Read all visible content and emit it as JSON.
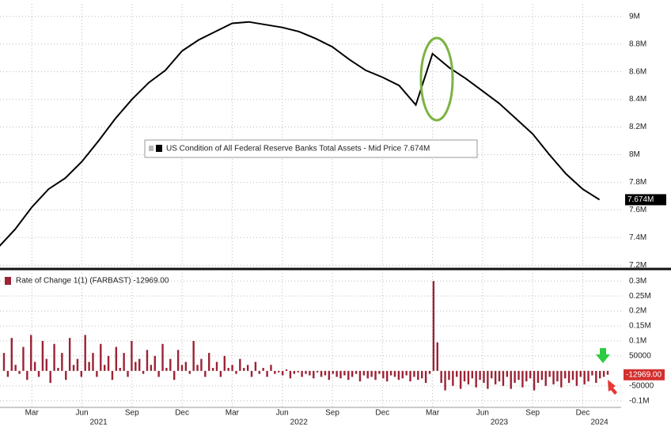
{
  "chart_data": [
    {
      "type": "line",
      "x": [
        "2021-01",
        "2021-02",
        "2021-03",
        "2021-04",
        "2021-05",
        "2021-06",
        "2021-07",
        "2021-08",
        "2021-09",
        "2021-10",
        "2021-11",
        "2021-12",
        "2022-01",
        "2022-02",
        "2022-03",
        "2022-04",
        "2022-05",
        "2022-06",
        "2022-07",
        "2022-08",
        "2022-09",
        "2022-10",
        "2022-11",
        "2022-12",
        "2023-01",
        "2023-02",
        "2023-03",
        "2023-04",
        "2023-05",
        "2023-06",
        "2023-07",
        "2023-08",
        "2023-09",
        "2023-10",
        "2023-11",
        "2023-12",
        "2024-01"
      ],
      "series": [
        {
          "name": "US Condition of All Federal Reserve Banks Total Assets - Mid Price 7.674M",
          "color": "#000000",
          "values": [
            7330000,
            7460000,
            7620000,
            7750000,
            7830000,
            7950000,
            8100000,
            8260000,
            8400000,
            8520000,
            8610000,
            8750000,
            8830000,
            8890000,
            8950000,
            8960000,
            8940000,
            8920000,
            8890000,
            8840000,
            8780000,
            8690000,
            8610000,
            8560000,
            8500000,
            8360000,
            8730000,
            8630000,
            8550000,
            8460000,
            8370000,
            8260000,
            8150000,
            8000000,
            7860000,
            7750000,
            7674000
          ],
          "value_labels": [
            null,
            null,
            null,
            null,
            null,
            null,
            null,
            null,
            null,
            null,
            null,
            null,
            null,
            null,
            null,
            null,
            null,
            null,
            null,
            null,
            null,
            null,
            null,
            null,
            null,
            null,
            null,
            null,
            null,
            null,
            null,
            null,
            null,
            null,
            null,
            null,
            "7.674M"
          ]
        }
      ],
      "ylim": [
        7190000,
        9090000
      ],
      "yticks": [
        {
          "value": 9000000,
          "label": "9M"
        },
        {
          "value": 8800000,
          "label": "8.8M"
        },
        {
          "value": 8600000,
          "label": "8.6M"
        },
        {
          "value": 8400000,
          "label": "8.4M"
        },
        {
          "value": 8200000,
          "label": "8.2M"
        },
        {
          "value": 8000000,
          "label": "8M"
        },
        {
          "value": 7800000,
          "label": "7.8M"
        },
        {
          "value": 7600000,
          "label": "7.6M"
        },
        {
          "value": 7400000,
          "label": "7.4M"
        },
        {
          "value": 7200000,
          "label": "7.2M"
        }
      ],
      "grid": true
    },
    {
      "type": "bar",
      "series": [
        {
          "name": "Rate of Change 1(1) (FARBAST) -12969.00",
          "color": "#9b2335",
          "values": [
            60000,
            -20000,
            110000,
            20000,
            -10000,
            80000,
            -30000,
            120000,
            30000,
            -20000,
            100000,
            40000,
            -40000,
            90000,
            10000,
            60000,
            -30000,
            110000,
            20000,
            40000,
            -20000,
            120000,
            30000,
            60000,
            -20000,
            90000,
            20000,
            50000,
            -30000,
            80000,
            10000,
            60000,
            -20000,
            100000,
            30000,
            40000,
            -10000,
            70000,
            20000,
            50000,
            -20000,
            90000,
            10000,
            40000,
            -30000,
            70000,
            20000,
            30000,
            -10000,
            100000,
            20000,
            40000,
            -20000,
            60000,
            10000,
            30000,
            -20000,
            50000,
            10000,
            20000,
            -10000,
            40000,
            10000,
            20000,
            -20000,
            30000,
            -10000,
            10000,
            -20000,
            20000,
            -10000,
            -5000,
            -15000,
            5000,
            -25000,
            -10000,
            -5000,
            -20000,
            -10000,
            -15000,
            -25000,
            -5000,
            -20000,
            -15000,
            -30000,
            -10000,
            -20000,
            -25000,
            -15000,
            -30000,
            -20000,
            -10000,
            -35000,
            -15000,
            -25000,
            -20000,
            -30000,
            -10000,
            -25000,
            -35000,
            -15000,
            -20000,
            -30000,
            -25000,
            -15000,
            -35000,
            -20000,
            -30000,
            -25000,
            -40000,
            -10000,
            300000,
            95000,
            -40000,
            -65000,
            -30000,
            -50000,
            -20000,
            -60000,
            -35000,
            -45000,
            -25000,
            -55000,
            -30000,
            -40000,
            -60000,
            -25000,
            -45000,
            -35000,
            -50000,
            -20000,
            -60000,
            -40000,
            -30000,
            -55000,
            -35000,
            -25000,
            -65000,
            -40000,
            -30000,
            -50000,
            -20000,
            -45000,
            -35000,
            -55000,
            -25000,
            -40000,
            -30000,
            -50000,
            -20000,
            -45000,
            -35000,
            -15000,
            -40000,
            -25000,
            -20000,
            -12969
          ],
          "value_labels": [
            null,
            null,
            null,
            null,
            null,
            null,
            null,
            null,
            null,
            null,
            null,
            null,
            null,
            null,
            null,
            null,
            null,
            null,
            null,
            null,
            null,
            null,
            null,
            null,
            null,
            null,
            null,
            null,
            null,
            null,
            null,
            null,
            null,
            null,
            null,
            null,
            null,
            null,
            null,
            null,
            null,
            null,
            null,
            null,
            null,
            null,
            null,
            null,
            null,
            null,
            null,
            null,
            null,
            null,
            null,
            null,
            null,
            null,
            null,
            null,
            null,
            null,
            null,
            null,
            null,
            null,
            null,
            null,
            null,
            null,
            null,
            null,
            null,
            null,
            null,
            null,
            null,
            null,
            null,
            null,
            null,
            null,
            null,
            null,
            null,
            null,
            null,
            null,
            null,
            null,
            null,
            null,
            null,
            null,
            null,
            null,
            null,
            null,
            null,
            null,
            null,
            null,
            null,
            null,
            null,
            null,
            null,
            null,
            null,
            null,
            null,
            null,
            null,
            null,
            null,
            null,
            null,
            null,
            null,
            null,
            null,
            null,
            null,
            null,
            null,
            null,
            null,
            null,
            null,
            null,
            null,
            null,
            null,
            null,
            null,
            null,
            null,
            null,
            null,
            null,
            null,
            null,
            null,
            null,
            null,
            null,
            null,
            null,
            null,
            null,
            null,
            null,
            null,
            null,
            null,
            null,
            "-12969.00"
          ]
        }
      ],
      "ylim": [
        -122000,
        327000
      ],
      "yticks": [
        {
          "value": 300000,
          "label": "0.3M"
        },
        {
          "value": 250000,
          "label": "0.25M"
        },
        {
          "value": 200000,
          "label": "0.2M"
        },
        {
          "value": 150000,
          "label": "0.15M"
        },
        {
          "value": 100000,
          "label": "0.1M"
        },
        50000,
        -50000,
        {
          "value": -100000,
          "label": "-0.1M"
        }
      ],
      "xticks": [
        {
          "value": "2021-03",
          "label": "Mar"
        },
        {
          "value": "2021-06",
          "label": "Jun"
        },
        {
          "value": "2021-09",
          "label": "Sep"
        },
        {
          "value": "2021-12",
          "label": "Dec"
        },
        {
          "value": "2022-03",
          "label": "Mar"
        },
        {
          "value": "2022-06",
          "label": "Jun"
        },
        {
          "value": "2022-09",
          "label": "Sep"
        },
        {
          "value": "2022-12",
          "label": "Dec"
        },
        {
          "value": "2023-03",
          "label": "Mar"
        },
        {
          "value": "2023-06",
          "label": "Jun"
        },
        {
          "value": "2023-09",
          "label": "Sep"
        },
        {
          "value": "2023-12",
          "label": "Dec"
        }
      ],
      "year_labels": [
        {
          "value": "2021-07",
          "label": "2021"
        },
        {
          "value": "2022-07",
          "label": "2022"
        },
        {
          "value": "2023-07",
          "label": "2023"
        },
        {
          "value": "2024-01",
          "label": "2024"
        }
      ],
      "grid": true
    }
  ]
}
